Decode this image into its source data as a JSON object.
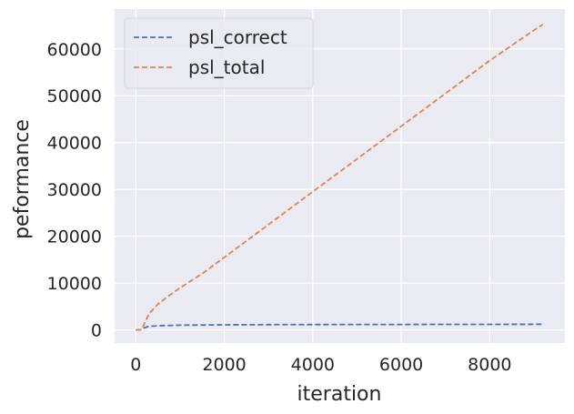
{
  "chart_data": {
    "type": "line",
    "xlabel": "iteration",
    "ylabel": "peformance",
    "xlim": [
      -480,
      9700
    ],
    "ylim": [
      -2800,
      68500
    ],
    "xticks": [
      0,
      2000,
      4000,
      6000,
      8000
    ],
    "yticks": [
      0,
      10000,
      20000,
      30000,
      40000,
      50000,
      60000
    ],
    "grid": true,
    "legend_position": "top-left",
    "series": [
      {
        "name": "psl_correct",
        "color": "#4c72b0",
        "dash": "dashed",
        "x": [
          0,
          100,
          150,
          200,
          300,
          500,
          1000,
          2000,
          3000,
          4000,
          5000,
          6000,
          7000,
          8000,
          9000,
          9200
        ],
        "y": [
          0,
          0,
          150,
          500,
          750,
          900,
          1000,
          1080,
          1120,
          1150,
          1160,
          1170,
          1180,
          1190,
          1200,
          1200
        ]
      },
      {
        "name": "psl_total",
        "color": "#dd8452",
        "dash": "dashed",
        "x": [
          0,
          100,
          150,
          200,
          300,
          500,
          700,
          1000,
          1500,
          2000,
          3000,
          4000,
          5000,
          6000,
          7000,
          8000,
          9000,
          9200
        ],
        "y": [
          0,
          0,
          500,
          1500,
          3500,
          5500,
          7000,
          9000,
          12000,
          15500,
          22500,
          29500,
          36500,
          43500,
          50500,
          57500,
          64000,
          65200
        ]
      }
    ]
  }
}
